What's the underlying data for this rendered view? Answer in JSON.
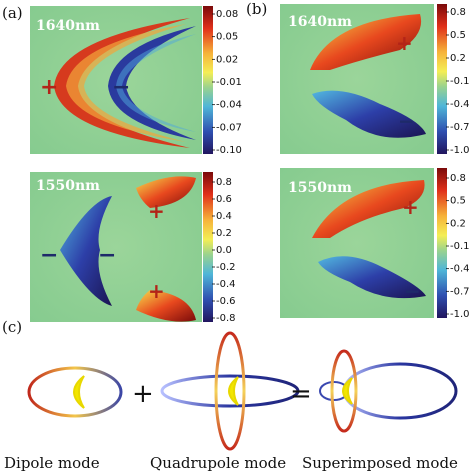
{
  "figure": {
    "panel_labels": [
      "(a)",
      "(b)",
      "(c)"
    ],
    "maps": [
      {
        "id": "a-top",
        "wavelength": "1640nm",
        "colorbar_ticks": [
          "0.08",
          "0.05",
          "0.02",
          "-0.01",
          "-0.04",
          "-0.07",
          "-0.10"
        ]
      },
      {
        "id": "b-top",
        "wavelength": "1640nm",
        "colorbar_ticks": [
          "0.8",
          "0.5",
          "0.2",
          "-0.1",
          "-0.4",
          "-0.7",
          "-1.0"
        ]
      },
      {
        "id": "a-bottom",
        "wavelength": "1550nm",
        "colorbar_ticks": [
          "0.8",
          "0.6",
          "0.4",
          "0.2",
          "0.0",
          "-0.2",
          "-0.4",
          "-0.6",
          "-0.8"
        ]
      },
      {
        "id": "b-bottom",
        "wavelength": "1550nm",
        "colorbar_ticks": [
          "0.8",
          "0.5",
          "0.2",
          "-0.1",
          "-0.4",
          "-0.7",
          "-1.0"
        ]
      }
    ],
    "signs": {
      "plus": "+",
      "minus": "−"
    },
    "equation_ops": {
      "plus": "+",
      "equals": "="
    },
    "mode_captions": [
      "Dipole mode",
      "Quadrupole mode",
      "Superimposed mode"
    ],
    "colors": {
      "field_bg": "#8ccf8c",
      "positive": "#b3261e",
      "negative": "#1f2a78",
      "crescent": "#f2e600"
    }
  }
}
